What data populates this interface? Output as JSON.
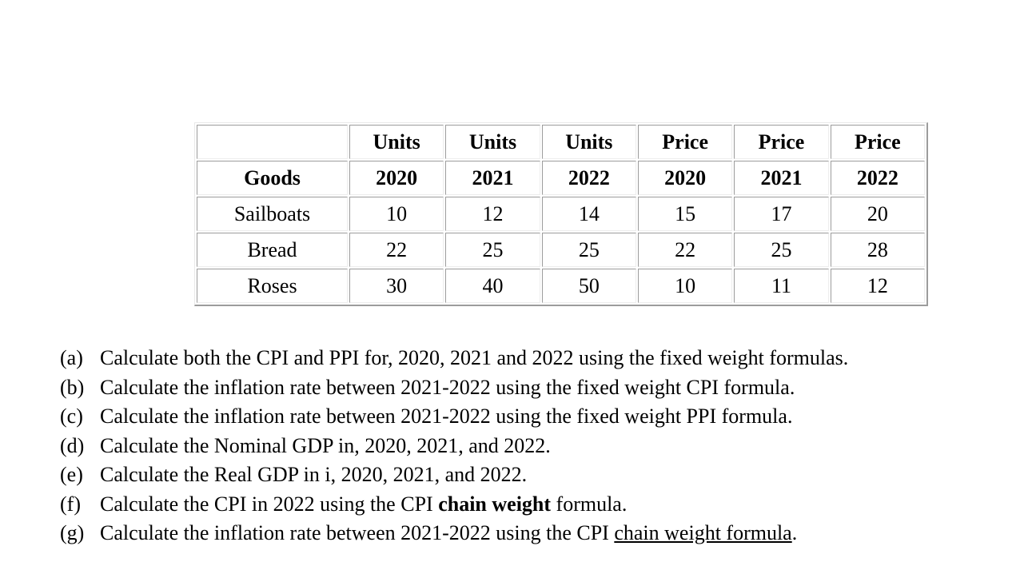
{
  "table": {
    "header_row_1": [
      "",
      "Units",
      "Units",
      "Units",
      "Price",
      "Price",
      "Price"
    ],
    "header_row_2": [
      "Goods",
      "2020",
      "2021",
      "2022",
      "2020",
      "2021",
      "2022"
    ],
    "rows": [
      [
        "Sailboats",
        "10",
        "12",
        "14",
        "15",
        "17",
        "20"
      ],
      [
        "Bread",
        "22",
        "25",
        "25",
        "22",
        "25",
        "28"
      ],
      [
        "Roses",
        "30",
        "40",
        "50",
        "10",
        "11",
        "12"
      ]
    ]
  },
  "questions": [
    {
      "label": "(a)",
      "pre": "Calculate both the CPI and PPI for, 2020, 2021 and 2022 using the fixed weight formulas.",
      "styled": "",
      "post": ""
    },
    {
      "label": "(b)",
      "pre": "Calculate the inflation rate between 2021-2022 using the fixed weight CPI formula.",
      "styled": "",
      "post": ""
    },
    {
      "label": "(c)",
      "pre": "Calculate the inflation rate between 2021-2022 using the fixed weight PPI formula.",
      "styled": "",
      "post": ""
    },
    {
      "label": "(d)",
      "pre": "Calculate the Nominal GDP in, 2020, 2021, and 2022.",
      "styled": "",
      "post": ""
    },
    {
      "label": "(e)",
      "pre": "Calculate the Real GDP in i, 2020, 2021, and 2022.",
      "styled": "",
      "post": ""
    },
    {
      "label": "(f)",
      "pre": "Calculate the CPI in 2022 using the CPI ",
      "styled": "chain weight",
      "post": " formula.",
      "style": "bold"
    },
    {
      "label": "(g)",
      "pre": "Calculate the inflation rate between 2021-2022 using the CPI ",
      "styled": "chain weight formula",
      "post": ".",
      "style": "underline"
    }
  ]
}
